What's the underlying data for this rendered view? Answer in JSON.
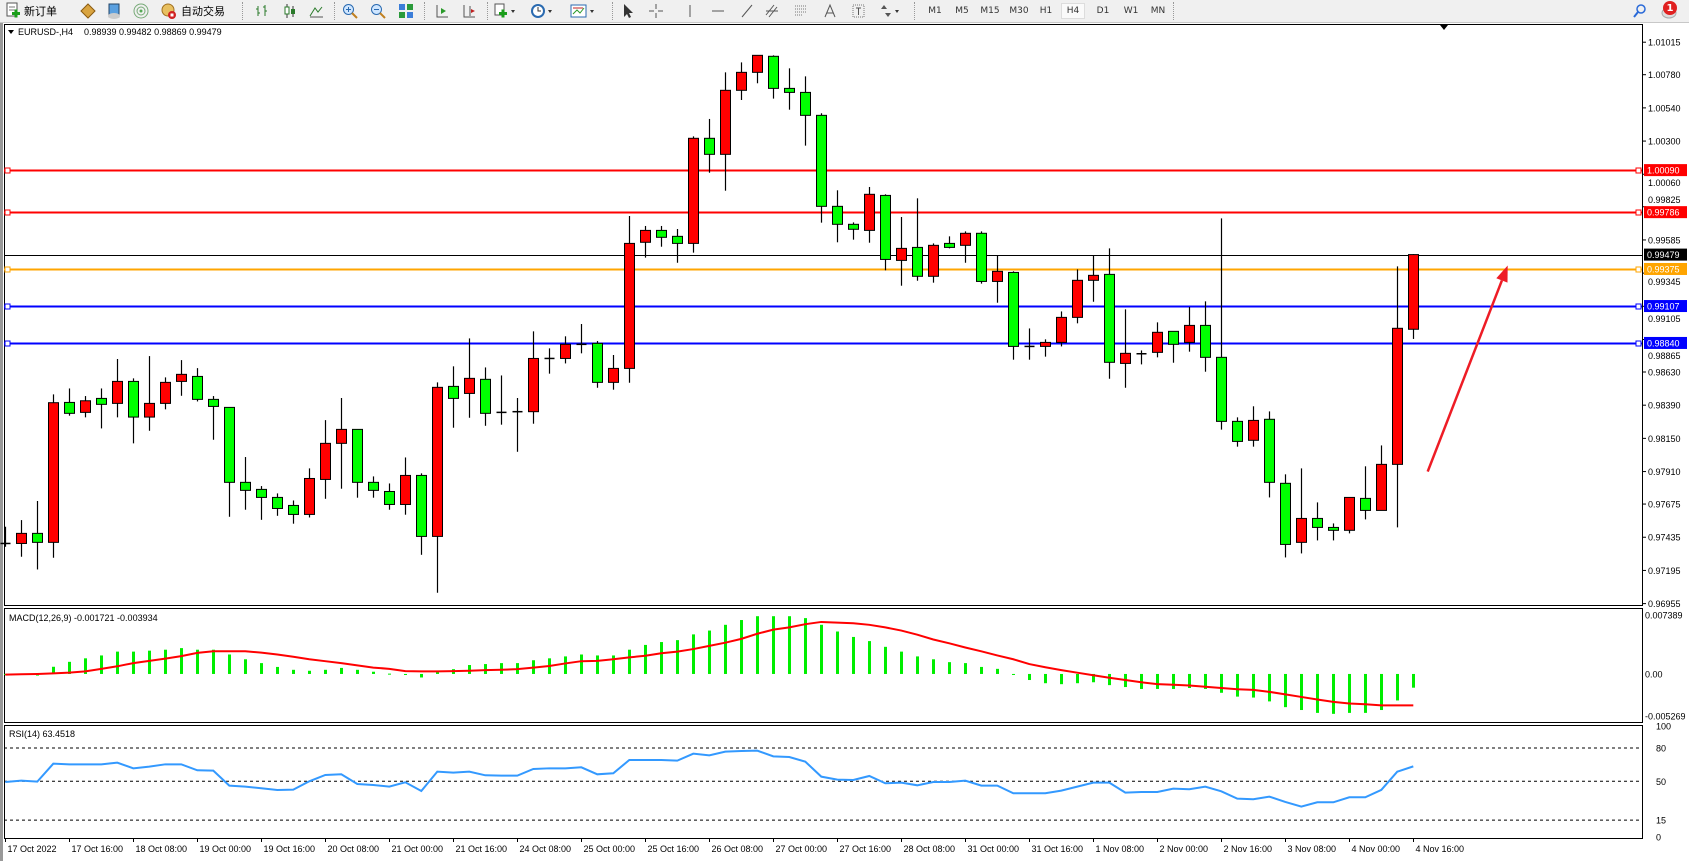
{
  "toolbar": {
    "new_order": "新订单",
    "auto_trade": "自动交易",
    "timeframes": [
      "M1",
      "M5",
      "M15",
      "M30",
      "H1",
      "H4",
      "D1",
      "W1",
      "MN"
    ],
    "active_timeframe": "H4",
    "notification_count": "1"
  },
  "chart": {
    "symbol": "EURUSD-,H4",
    "ohlc": "0.98939 0.99482 0.98869 0.99479",
    "colors": {
      "up": "#ff0000",
      "down": "#00ff00",
      "wick": "#000000",
      "macd_hist": "#00ee00",
      "macd_signal": "#ff0000",
      "rsi": "#3399ff",
      "arrow": "#ee1c25"
    },
    "price_labels": [
      "1.01015",
      "1.00780",
      "1.00540",
      "1.00300",
      "1.00060",
      "0.99825",
      "0.99585",
      "0.99345",
      "0.99105",
      "0.98865",
      "0.98630",
      "0.98390",
      "0.98150",
      "0.97910",
      "0.97675",
      "0.97435",
      "0.97195",
      "0.96955"
    ],
    "time_labels": [
      "17 Oct 2022",
      "17 Oct 16:00",
      "18 Oct 08:00",
      "19 Oct 00:00",
      "19 Oct 16:00",
      "20 Oct 08:00",
      "21 Oct 00:00",
      "21 Oct 16:00",
      "24 Oct 08:00",
      "25 Oct 00:00",
      "25 Oct 16:00",
      "26 Oct 08:00",
      "27 Oct 00:00",
      "27 Oct 16:00",
      "28 Oct 08:00",
      "31 Oct 00:00",
      "31 Oct 16:00",
      "1 Nov 08:00",
      "2 Nov 00:00",
      "2 Nov 16:00",
      "3 Nov 08:00",
      "4 Nov 00:00",
      "4 Nov 16:00"
    ],
    "current_price": {
      "price": "0.99479",
      "color": "#000000"
    },
    "hlines": [
      {
        "price": "1.00090",
        "color": "#ff0000"
      },
      {
        "price": "0.99786",
        "color": "#ff0000"
      },
      {
        "price": "0.99375",
        "color": "#ffa500"
      },
      {
        "price": "0.99107",
        "color": "#0000ff"
      },
      {
        "price": "0.98840",
        "color": "#0000ff"
      }
    ],
    "arrow": {
      "from_bar": 88.9,
      "from_price": 0.9791,
      "to_bar": 93.9,
      "to_price": 0.994
    }
  },
  "macd": {
    "label": "MACD(12,26,9) -0.001721 -0.003934",
    "axis_labels": [
      "0.007389",
      "0.00",
      "-0.005269"
    ]
  },
  "rsi": {
    "label": "RSI(14) 63.4518",
    "axis_labels": [
      "100",
      "80",
      "50",
      "15",
      "0"
    ],
    "levels": [
      80,
      50,
      15
    ]
  },
  "chart_data": {
    "type": "candlestick",
    "symbol": "EURUSD-",
    "timeframe": "H4",
    "ylim": [
      0.96955,
      1.01015
    ],
    "ohlc": [
      [
        0.9739,
        0.97511,
        0.97366,
        0.97392
      ],
      [
        0.9739,
        0.97559,
        0.97294,
        0.97463
      ],
      [
        0.97463,
        0.97697,
        0.97202,
        0.97398
      ],
      [
        0.97398,
        0.98468,
        0.97287,
        0.98408
      ],
      [
        0.9841,
        0.98511,
        0.98314,
        0.98331
      ],
      [
        0.98338,
        0.98456,
        0.98302,
        0.98422
      ],
      [
        0.98439,
        0.98511,
        0.98222,
        0.98396
      ],
      [
        0.98403,
        0.98724,
        0.98302,
        0.98562
      ],
      [
        0.98562,
        0.98584,
        0.98114,
        0.98304
      ],
      [
        0.98304,
        0.98745,
        0.98205,
        0.98403
      ],
      [
        0.98403,
        0.98591,
        0.9836,
        0.98555
      ],
      [
        0.98562,
        0.98716,
        0.98458,
        0.98613
      ],
      [
        0.98598,
        0.98658,
        0.98417,
        0.98432
      ],
      [
        0.98432,
        0.98456,
        0.9814,
        0.98381
      ],
      [
        0.98374,
        0.98374,
        0.97583,
        0.97832
      ],
      [
        0.97832,
        0.98015,
        0.97634,
        0.97774
      ],
      [
        0.97781,
        0.97805,
        0.97561,
        0.97723
      ],
      [
        0.97723,
        0.97752,
        0.9759,
        0.97643
      ],
      [
        0.97665,
        0.97701,
        0.97533,
        0.976
      ],
      [
        0.976,
        0.97933,
        0.97578,
        0.9786
      ],
      [
        0.97853,
        0.98282,
        0.97713,
        0.98114
      ],
      [
        0.98114,
        0.98442,
        0.97786,
        0.98215
      ],
      [
        0.98215,
        0.98215,
        0.97721,
        0.97832
      ],
      [
        0.97832,
        0.97875,
        0.97721,
        0.97774
      ],
      [
        0.97766,
        0.97824,
        0.97634,
        0.97672
      ],
      [
        0.97672,
        0.98012,
        0.97598,
        0.97882
      ],
      [
        0.97882,
        0.97897,
        0.97308,
        0.97441
      ],
      [
        0.97441,
        0.98555,
        0.97034,
        0.98519
      ],
      [
        0.98526,
        0.98671,
        0.98227,
        0.98439
      ],
      [
        0.98475,
        0.98873,
        0.98299,
        0.98584
      ],
      [
        0.98577,
        0.98663,
        0.98241,
        0.98331
      ],
      [
        0.98338,
        0.98605,
        0.98249,
        0.98338
      ],
      [
        0.98343,
        0.98442,
        0.98053,
        0.98343
      ],
      [
        0.98343,
        0.98924,
        0.98256,
        0.98728
      ],
      [
        0.98728,
        0.98801,
        0.98618,
        0.98728
      ],
      [
        0.98728,
        0.98888,
        0.98692,
        0.9883
      ],
      [
        0.9883,
        0.98977,
        0.98765,
        0.98835
      ],
      [
        0.98837,
        0.98854,
        0.98516,
        0.98555
      ],
      [
        0.98555,
        0.98753,
        0.98502,
        0.98656
      ],
      [
        0.98656,
        0.99758,
        0.98552,
        0.9956
      ],
      [
        0.99568,
        0.99686,
        0.99457,
        0.99654
      ],
      [
        0.99654,
        0.99686,
        0.99536,
        0.99604
      ],
      [
        0.99611,
        0.99664,
        0.9942,
        0.9956
      ],
      [
        0.9956,
        1.00334,
        0.99493,
        1.0032
      ],
      [
        1.0032,
        1.0046,
        1.00071,
        1.00204
      ],
      [
        1.00204,
        1.00797,
        0.99941,
        1.00667
      ],
      [
        1.00667,
        1.00869,
        1.00597,
        1.00797
      ],
      [
        1.00797,
        1.0092,
        1.00718,
        1.0092
      ],
      [
        1.00913,
        1.0092,
        1.00607,
        1.00681
      ],
      [
        1.00681,
        1.00826,
        1.00527,
        1.00652
      ],
      [
        1.00652,
        1.00768,
        1.00267,
        1.00486
      ],
      [
        1.00486,
        1.00501,
        0.9971,
        0.99828
      ],
      [
        0.99828,
        0.99944,
        0.99568,
        0.99698
      ],
      [
        0.99698,
        0.99712,
        0.99587,
        0.99662
      ],
      [
        0.99654,
        0.99968,
        0.99565,
        0.99915
      ],
      [
        0.99907,
        0.99915,
        0.99365,
        0.99444
      ],
      [
        0.99437,
        0.99751,
        0.99254,
        0.99524
      ],
      [
        0.99531,
        0.99886,
        0.9929,
        0.99322
      ],
      [
        0.99322,
        0.9956,
        0.99276,
        0.99546
      ],
      [
        0.9956,
        0.99611,
        0.99524,
        0.99531
      ],
      [
        0.99546,
        0.99647,
        0.9942,
        0.99633
      ],
      [
        0.99633,
        0.99647,
        0.99269,
        0.99285
      ],
      [
        0.99285,
        0.99473,
        0.99131,
        0.99358
      ],
      [
        0.9935,
        0.99358,
        0.98719,
        0.98815
      ],
      [
        0.98815,
        0.98945,
        0.98719,
        0.98815
      ],
      [
        0.98815,
        0.98866,
        0.98741,
        0.98844
      ],
      [
        0.98844,
        0.99068,
        0.98815,
        0.99025
      ],
      [
        0.99025,
        0.99372,
        0.98982,
        0.99293
      ],
      [
        0.99293,
        0.99473,
        0.99138,
        0.99329
      ],
      [
        0.99336,
        0.99524,
        0.98581,
        0.987
      ],
      [
        0.98692,
        0.99083,
        0.98516,
        0.98765
      ],
      [
        0.98762,
        0.98786,
        0.98685,
        0.98762
      ],
      [
        0.98772,
        0.98989,
        0.98736,
        0.98917
      ],
      [
        0.98924,
        0.98924,
        0.98697,
        0.9883
      ],
      [
        0.98844,
        0.991,
        0.98777,
        0.98967
      ],
      [
        0.98967,
        0.99141,
        0.98632,
        0.98736
      ],
      [
        0.98736,
        0.99741,
        0.98213,
        0.98273
      ],
      [
        0.98273,
        0.98302,
        0.9809,
        0.98128
      ],
      [
        0.98136,
        0.98382,
        0.9809,
        0.9828
      ],
      [
        0.98288,
        0.98345,
        0.97723,
        0.97832
      ],
      [
        0.97825,
        0.9789,
        0.97289,
        0.97383
      ],
      [
        0.97398,
        0.97933,
        0.97318,
        0.97571
      ],
      [
        0.97571,
        0.97687,
        0.97412,
        0.97506
      ],
      [
        0.97506,
        0.97535,
        0.97412,
        0.97485
      ],
      [
        0.97485,
        0.97723,
        0.97463,
        0.97723
      ],
      [
        0.97716,
        0.97948,
        0.97564,
        0.97629
      ],
      [
        0.97629,
        0.98099,
        0.97629,
        0.97962
      ],
      [
        0.97962,
        0.99394,
        0.97506,
        0.98946
      ],
      [
        0.98939,
        0.99482,
        0.98869,
        0.99479
      ]
    ],
    "macd": {
      "ylim": [
        -0.005269,
        0.007389
      ],
      "histogram": [
        0,
        0,
        -0.0002,
        0.0009,
        0.00152,
        0.00196,
        0.00232,
        0.0028,
        0.0028,
        0.00292,
        0.00304,
        0.00324,
        0.00304,
        0.00304,
        0.00244,
        0.00184,
        0.00136,
        0.00088,
        0.00052,
        0.0004,
        0.00052,
        0.00076,
        0.00052,
        0.00028,
        4e-05,
        -4e-05,
        -0.00044,
        0.00024,
        0.0006,
        0.00112,
        0.00124,
        0.00136,
        0.00136,
        0.00172,
        0.00196,
        0.0022,
        0.00244,
        0.00232,
        0.00232,
        0.00304,
        0.00364,
        0.004,
        0.00424,
        0.00496,
        0.00544,
        0.00616,
        0.00676,
        0.00724,
        0.00724,
        0.00724,
        0.007,
        0.00616,
        0.00532,
        0.00464,
        0.00412,
        0.0034,
        0.0028,
        0.0022,
        0.00184,
        0.00148,
        0.00136,
        0.00088,
        0.00064,
        -8e-05,
        -0.00076,
        -0.00116,
        -0.00128,
        -0.00116,
        -0.00104,
        -0.0014,
        -0.00164,
        -0.00188,
        -0.00188,
        -0.00188,
        -0.00176,
        -0.00188,
        -0.00236,
        -0.00284,
        -0.00296,
        -0.00344,
        -0.00416,
        -0.00452,
        -0.00488,
        -0.005,
        -0.00488,
        -0.00488,
        -0.00452,
        -0.00332,
        -0.001721
      ],
      "signal": [
        -8e-05,
        -4e-05,
        0,
        8e-05,
        0.00016,
        0.00032,
        0.00064,
        0.00096,
        0.00136,
        0.00164,
        0.00192,
        0.00224,
        0.00264,
        0.00284,
        0.00284,
        0.00284,
        0.00268,
        0.00244,
        0.00216,
        0.00184,
        0.0016,
        0.00136,
        0.00108,
        0.0008,
        0.00064,
        0.00036,
        0.00032,
        0.00032,
        0.00036,
        0.0004,
        0.00048,
        0.00052,
        0.0006,
        0.0008,
        0.001,
        0.00132,
        0.0016,
        0.00164,
        0.00184,
        0.00208,
        0.00228,
        0.0026,
        0.0028,
        0.00312,
        0.00352,
        0.00392,
        0.0044,
        0.00504,
        0.00556,
        0.00584,
        0.00624,
        0.00652,
        0.00644,
        0.00636,
        0.00616,
        0.00584,
        0.00544,
        0.00492,
        0.00432,
        0.00384,
        0.00332,
        0.00284,
        0.00232,
        0.00184,
        0.00124,
        0.00084,
        0.00048,
        0.00016,
        -0.00016,
        -0.00048,
        -0.00076,
        -0.00104,
        -0.00128,
        -0.00136,
        -0.00144,
        -0.0016,
        -0.00176,
        -0.00192,
        -0.002,
        -0.00224,
        -0.00256,
        -0.00288,
        -0.0032,
        -0.0035,
        -0.0037,
        -0.0038,
        -0.003934,
        -0.003934,
        -0.003934
      ]
    },
    "rsi": {
      "ylim": [
        0,
        100
      ],
      "values": [
        49.4,
        50.6,
        49.7,
        65.9,
        65.3,
        65.3,
        65.3,
        66.8,
        61.7,
        63.2,
        65.3,
        65.3,
        59.9,
        59.6,
        46.1,
        45.2,
        43.7,
        42.2,
        42.5,
        50.0,
        55.7,
        56.3,
        47.6,
        46.7,
        45.2,
        49.1,
        41.3,
        58.7,
        57.8,
        58.7,
        55.4,
        55.1,
        55.1,
        61.1,
        61.7,
        61.7,
        62.6,
        56.3,
        57.2,
        69.2,
        69.2,
        69.2,
        68.6,
        74.9,
        73.4,
        76.7,
        77.3,
        77.6,
        72.5,
        71.9,
        67.7,
        54.2,
        51.5,
        51.2,
        54.8,
        48.2,
        48.8,
        46.4,
        49.4,
        49.4,
        50.6,
        46.1,
        46.1,
        39.2,
        39.2,
        39.2,
        41.6,
        45.2,
        48.8,
        48.8,
        39.8,
        40.4,
        40.4,
        43.4,
        42.8,
        45.2,
        41.0,
        34.4,
        33.8,
        36.2,
        31.4,
        27.2,
        31.1,
        31.1,
        35.6,
        35.6,
        42.2,
        58.7,
        63.4518
      ]
    }
  }
}
